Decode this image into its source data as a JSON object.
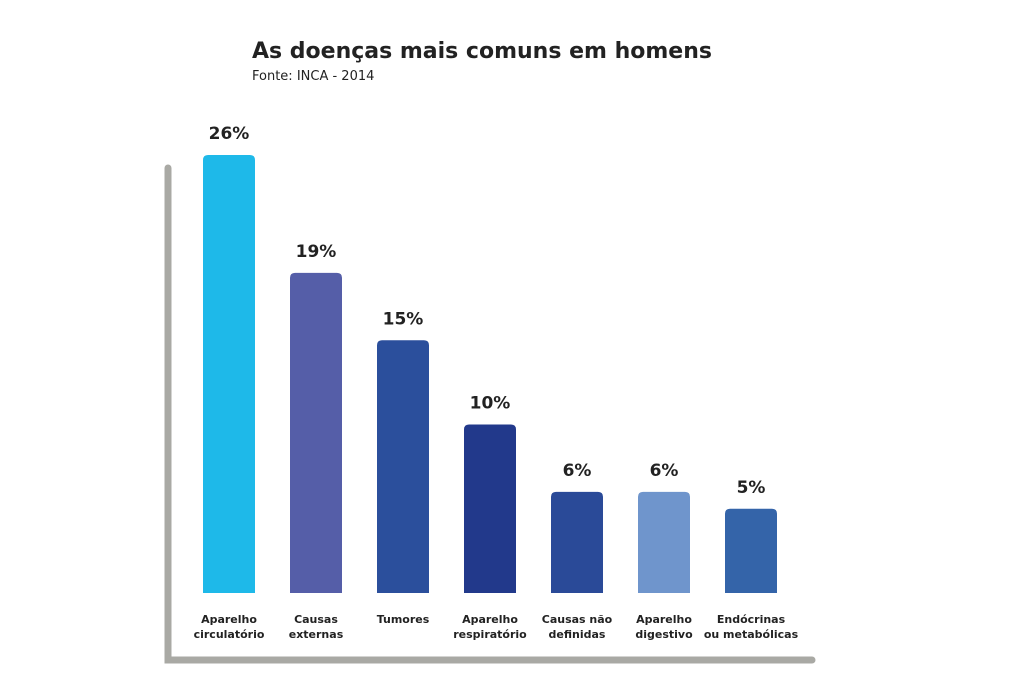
{
  "chart_data": {
    "type": "bar",
    "title": "As doenças mais comuns em homens",
    "subtitle": "Fonte: INCA - 2014",
    "categories": [
      "Aparelho\ncirculatório",
      "Causas\nexternas",
      "Tumores",
      "Aparelho\nrespiratório",
      "Causas não\ndefinidas",
      "Aparelho\ndigestivo",
      "Endócrinas\nou metabólicas"
    ],
    "values": [
      26,
      19,
      15,
      10,
      6,
      6,
      5
    ],
    "value_labels": [
      "26%",
      "19%",
      "15%",
      "10%",
      "6%",
      "6%",
      "5%"
    ],
    "colors": [
      "#1eb9e9",
      "#555ea8",
      "#2b4f9c",
      "#22398b",
      "#2a4a98",
      "#6f95cc",
      "#3464a9"
    ],
    "grid": false
  }
}
